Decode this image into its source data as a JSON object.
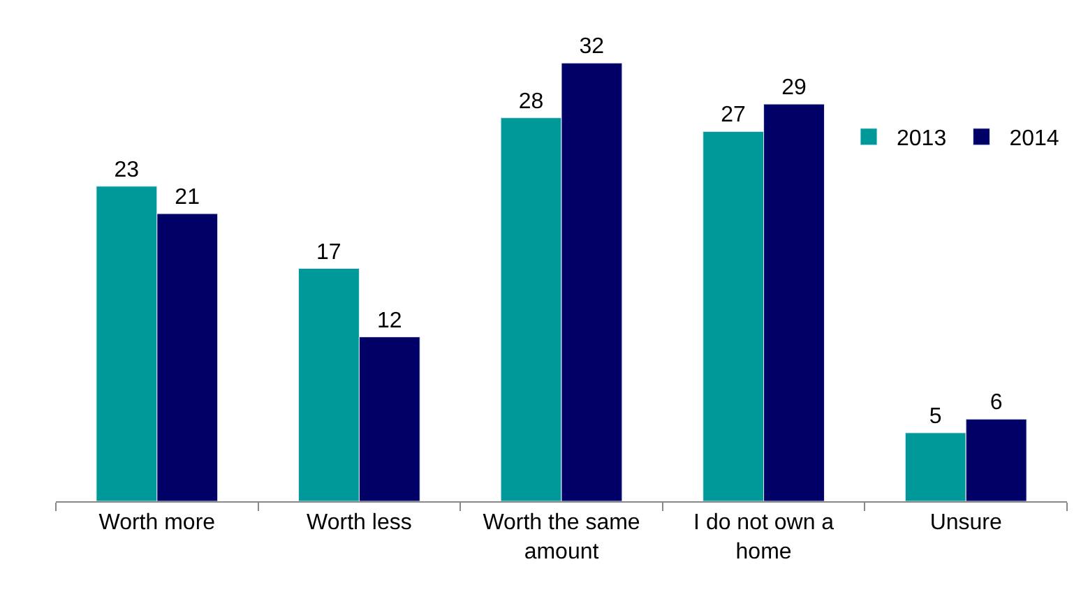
{
  "chart_data": {
    "type": "bar",
    "categories": [
      "Worth more",
      "Worth less",
      "Worth the same amount",
      "I do not own a home",
      "Unsure"
    ],
    "series": [
      {
        "name": "2013",
        "color": "#009999",
        "values": [
          23,
          17,
          28,
          27,
          5
        ]
      },
      {
        "name": "2014",
        "color": "#000066",
        "values": [
          21,
          12,
          32,
          29,
          6
        ]
      }
    ],
    "data_labels": true,
    "legend": "top right"
  }
}
